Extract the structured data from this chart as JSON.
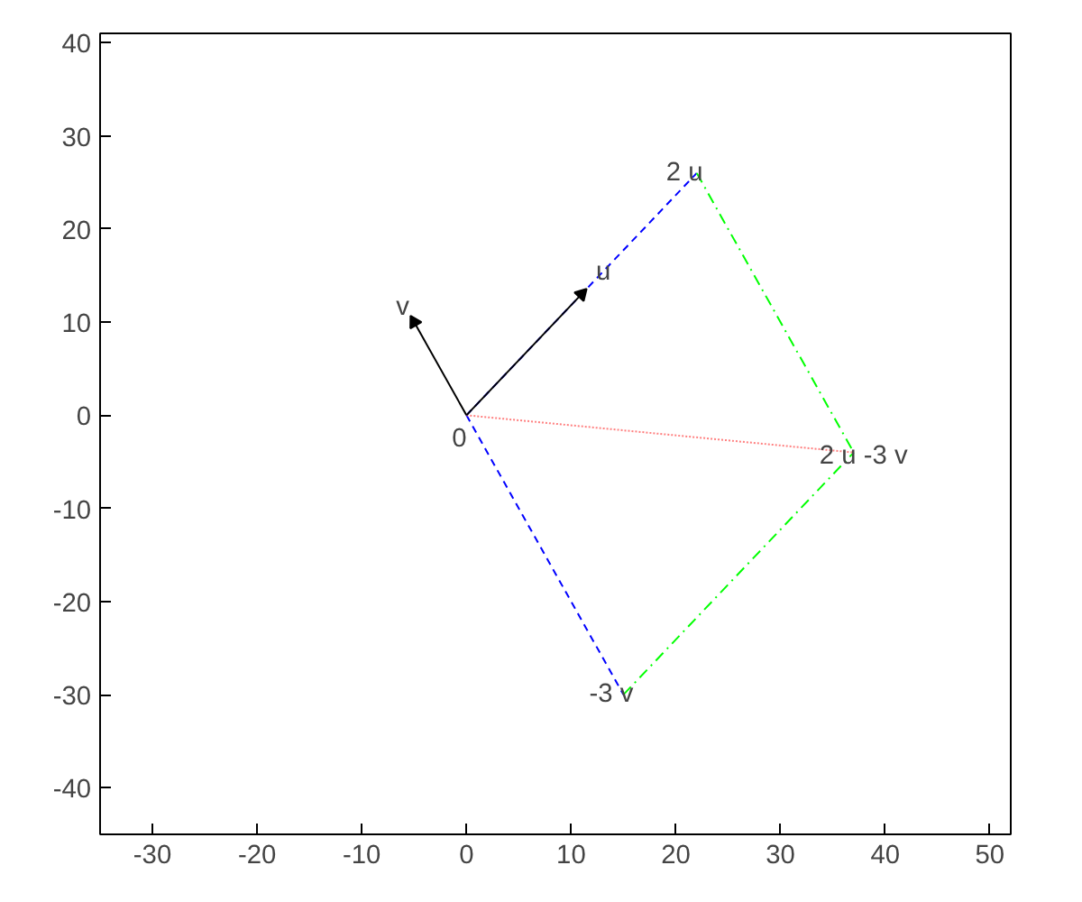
{
  "chart_data": {
    "type": "line",
    "xlim": [
      -35,
      52
    ],
    "ylim": [
      -45,
      41
    ],
    "xticks": [
      -30,
      -20,
      -10,
      0,
      10,
      20,
      30,
      40,
      50
    ],
    "yticks": [
      -40,
      -30,
      -20,
      -10,
      0,
      10,
      20,
      30,
      40
    ],
    "grid": false,
    "marker": "none",
    "series": [
      {
        "color": "#0000ff",
        "x": [
          0,
          22
        ],
        "values": [
          0,
          26
        ],
        "line_style": "dashed"
      },
      {
        "color": "#0000ff",
        "x": [
          0,
          15
        ],
        "values": [
          0,
          -30
        ],
        "line_style": "dashed"
      },
      {
        "color": "#00ff00",
        "x": [
          22,
          37
        ],
        "values": [
          26,
          -4
        ],
        "line_style": "dashdot"
      },
      {
        "color": "#00ff00",
        "x": [
          15,
          37
        ],
        "values": [
          -30,
          -4
        ],
        "line_style": "dashdot"
      },
      {
        "color": "#ff8080",
        "x": [
          0,
          37
        ],
        "values": [
          0,
          -4
        ],
        "line_style": "dotted"
      },
      {
        "color": "#000000",
        "x": [
          0,
          11
        ],
        "values": [
          0,
          13
        ],
        "line_style": "solid",
        "marker": "triangle"
      },
      {
        "color": "#000000",
        "x": [
          0,
          -5
        ],
        "values": [
          0,
          10
        ],
        "line_style": "solid",
        "marker": "triangle"
      }
    ],
    "annotations": [
      {
        "text": "0",
        "x": 0,
        "y": 0
      },
      {
        "text": "u",
        "x": 11,
        "y": 13
      },
      {
        "text": "v",
        "x": -5,
        "y": 10
      },
      {
        "text": "2 u",
        "x": 22,
        "y": 26
      },
      {
        "text": "2 u -3 v",
        "x": 37,
        "y": -4
      },
      {
        "text": "-3 v",
        "x": 15,
        "y": -30
      }
    ]
  }
}
